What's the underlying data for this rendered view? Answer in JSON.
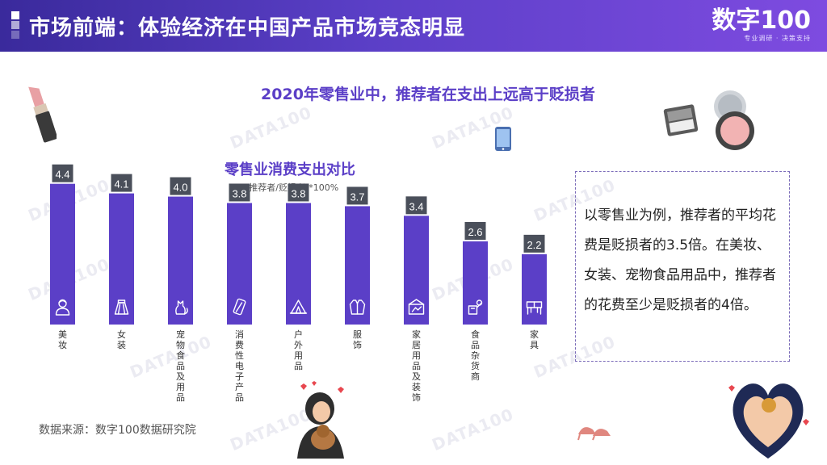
{
  "header": {
    "title": "市场前端：体验经济在中国产品市场竞态明显",
    "logo_text": "数字100",
    "logo_sub": "专业调研 · 决策支持"
  },
  "subtitle": "2020年零售业中，推荐者在支出上远高于贬损者",
  "watermark": "DATA100",
  "chart_data": {
    "type": "bar",
    "title": "零售业消费支出对比",
    "unit_note": "(推荐者/贬损者)*100%",
    "categories": [
      "美妆",
      "女装",
      "宠物食品及用品",
      "消费性电子产品",
      "户外用品",
      "服饰",
      "家居用品及装饰",
      "食品杂货商",
      "家具"
    ],
    "values": [
      4.4,
      4.1,
      4.0,
      3.8,
      3.8,
      3.7,
      3.4,
      2.6,
      2.2
    ],
    "value_labels": [
      "4.4",
      "4.1",
      "4.0",
      "3.8",
      "3.8",
      "3.7",
      "3.4",
      "2.6",
      "2.2"
    ],
    "icons": [
      "person-icon",
      "skirt-icon",
      "cat-icon",
      "phone-icon",
      "tent-icon",
      "jacket-icon",
      "house-icon",
      "grocery-icon",
      "furniture-icon"
    ],
    "ylim": [
      0,
      5.2
    ],
    "grid": false,
    "bar_color": "#5b3fc7",
    "label_bg": "#4a4f5a"
  },
  "info_box": {
    "text": "以零售业为例，推荐者的平均花费是贬损者的3.5倍。在美妆、女装、宠物食品用品中，推荐者的花费至少是贬损者的4倍。"
  },
  "source": "数据来源：数字100数据研究院",
  "colors": {
    "header_start": "#3a2a9c",
    "header_end": "#7e4be0",
    "accent": "#5b3fc7"
  }
}
